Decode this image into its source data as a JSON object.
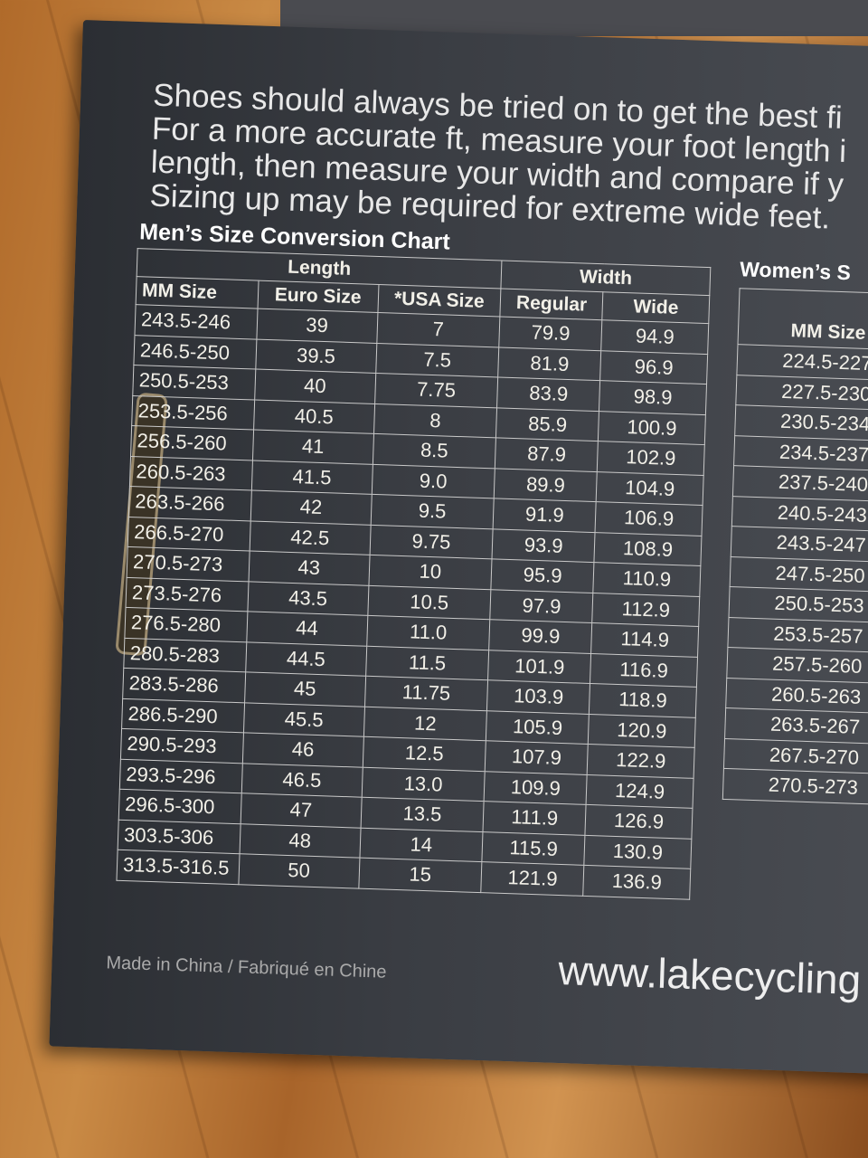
{
  "intro_lines": [
    "Shoes should always be tried on to get the best fi",
    "For a more accurate ft, measure your foot length i",
    "length, then measure your width and compare if y",
    "Sizing up may be required for extreme wide feet."
  ],
  "mens_chart": {
    "title": "Men’s Size Conversion Chart",
    "group_headers": {
      "length": "Length",
      "width": "Width"
    },
    "columns": [
      "MM Size",
      "Euro Size",
      "*USA  Size",
      "Regular",
      "Wide"
    ],
    "rows": [
      [
        "243.5-246",
        "39",
        "7",
        "79.9",
        "94.9"
      ],
      [
        "246.5-250",
        "39.5",
        "7.5",
        "81.9",
        "96.9"
      ],
      [
        "250.5-253",
        "40",
        "7.75",
        "83.9",
        "98.9"
      ],
      [
        "253.5-256",
        "40.5",
        "8",
        "85.9",
        "100.9"
      ],
      [
        "256.5-260",
        "41",
        "8.5",
        "87.9",
        "102.9"
      ],
      [
        "260.5-263",
        "41.5",
        "9.0",
        "89.9",
        "104.9"
      ],
      [
        "263.5-266",
        "42",
        "9.5",
        "91.9",
        "106.9"
      ],
      [
        "266.5-270",
        "42.5",
        "9.75",
        "93.9",
        "108.9"
      ],
      [
        "270.5-273",
        "43",
        "10",
        "95.9",
        "110.9"
      ],
      [
        "273.5-276",
        "43.5",
        "10.5",
        "97.9",
        "112.9"
      ],
      [
        "276.5-280",
        "44",
        "11.0",
        "99.9",
        "114.9"
      ],
      [
        "280.5-283",
        "44.5",
        "11.5",
        "101.9",
        "116.9"
      ],
      [
        "283.5-286",
        "45",
        "11.75",
        "103.9",
        "118.9"
      ],
      [
        "286.5-290",
        "45.5",
        "12",
        "105.9",
        "120.9"
      ],
      [
        "290.5-293",
        "46",
        "12.5",
        "107.9",
        "122.9"
      ],
      [
        "293.5-296",
        "46.5",
        "13.0",
        "109.9",
        "124.9"
      ],
      [
        "296.5-300",
        "47",
        "13.5",
        "111.9",
        "126.9"
      ],
      [
        "303.5-306",
        "48",
        "14",
        "115.9",
        "130.9"
      ],
      [
        "313.5-316.5",
        "50",
        "15",
        "121.9",
        "136.9"
      ]
    ]
  },
  "womens_chart": {
    "title": "Women’s S",
    "columns": [
      "MM Size"
    ],
    "rows": [
      "224.5-227",
      "227.5-230",
      "230.5-234",
      "234.5-237",
      "237.5-240",
      "240.5-243",
      "243.5-247",
      "247.5-250",
      "250.5-253",
      "253.5-257",
      "257.5-260",
      "260.5-263",
      "263.5-267",
      "267.5-270",
      "270.5-273"
    ]
  },
  "footer": {
    "made_in": "Made in China / Fabriqué en Chine",
    "website": "www.lakecycling"
  },
  "colors": {
    "box": "#35383d",
    "text": "#f2f0e8",
    "wood": "#c08040"
  }
}
